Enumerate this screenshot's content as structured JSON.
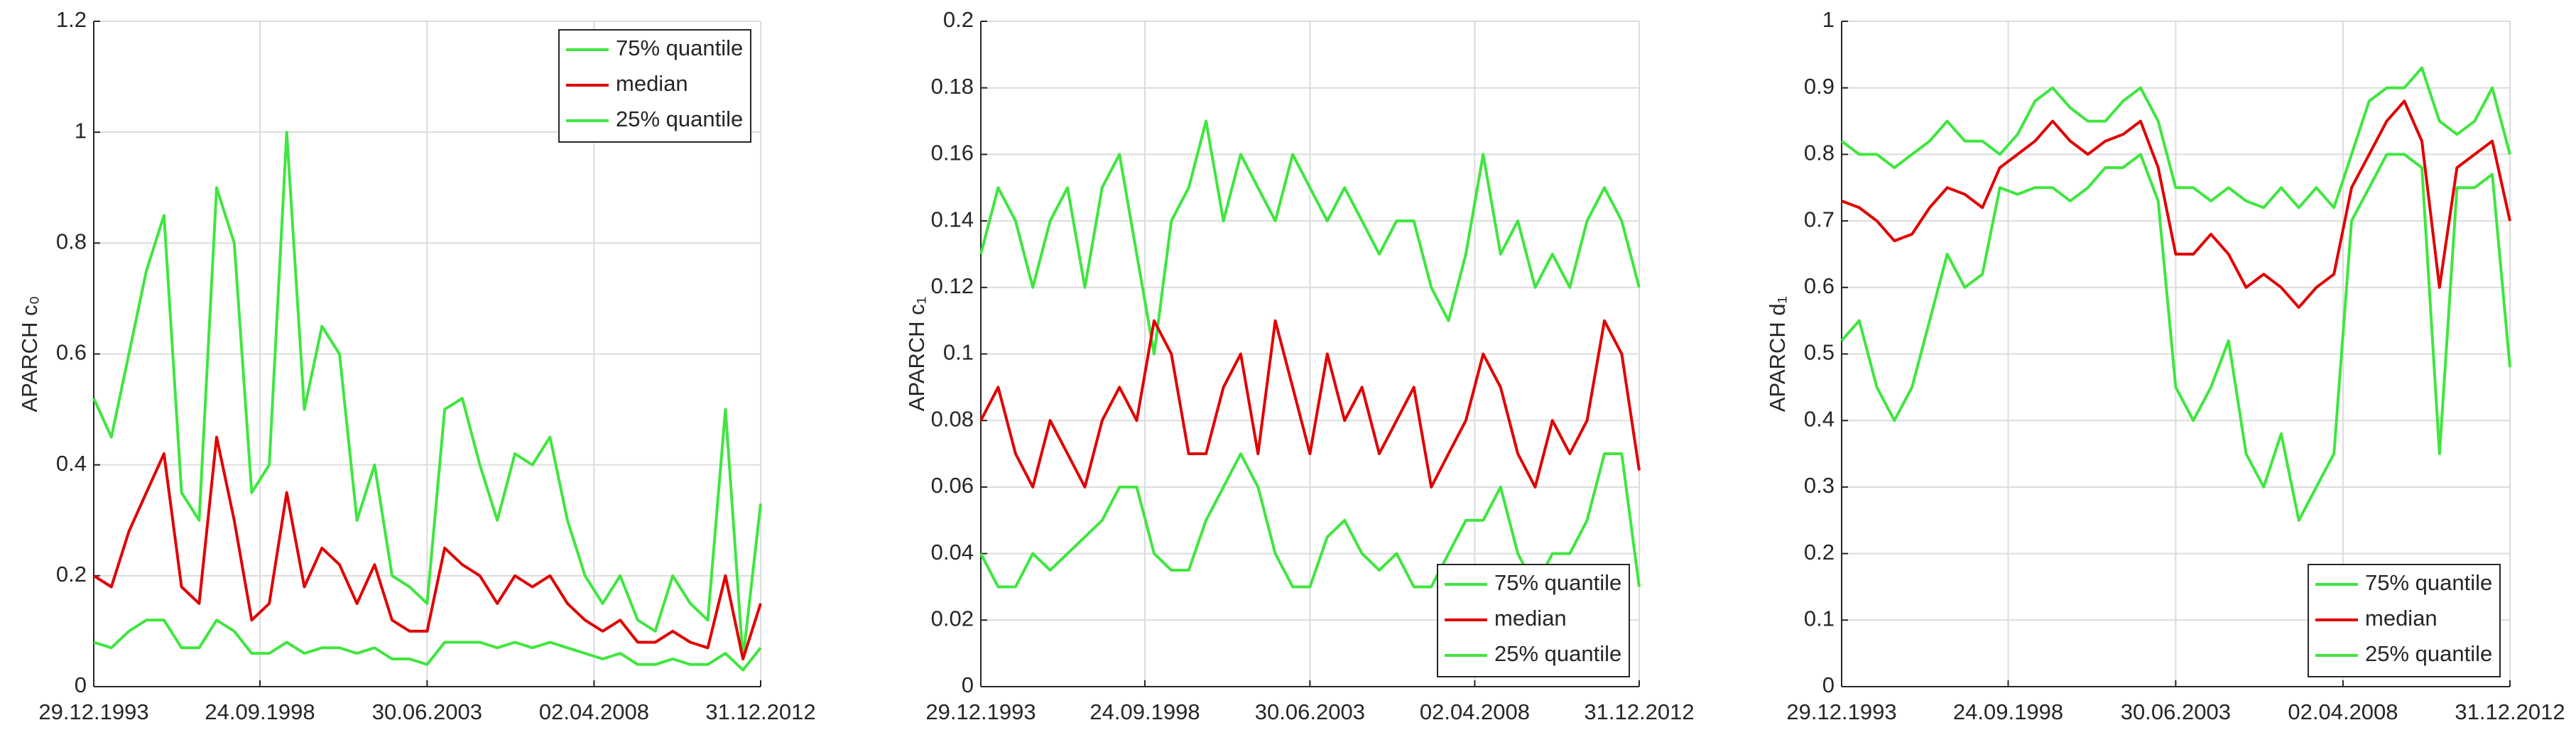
{
  "chart_data": [
    {
      "type": "line",
      "ylabel": "APARCH c₀",
      "x": [
        "29.12.1993",
        "30.06.1994",
        "30.12.1994",
        "30.06.1995",
        "30.12.1995",
        "30.06.1996",
        "30.12.1996",
        "30.06.1997",
        "30.12.1997",
        "30.06.1998",
        "30.12.1998",
        "30.06.1999",
        "30.12.1999",
        "30.06.2000",
        "30.12.2000",
        "30.06.2001",
        "30.12.2001",
        "30.06.2002",
        "30.12.2002",
        "30.06.2003",
        "30.12.2003",
        "30.06.2004",
        "30.12.2004",
        "30.06.2005",
        "30.12.2005",
        "30.06.2006",
        "30.12.2006",
        "30.06.2007",
        "30.12.2007",
        "30.06.2008",
        "30.12.2008",
        "30.06.2009",
        "30.12.2009",
        "30.06.2010",
        "30.12.2010",
        "30.06.2011",
        "30.12.2011",
        "30.06.2012",
        "31.12.2012"
      ],
      "xlim": [
        "29.12.1993",
        "31.12.2012"
      ],
      "xticks": [
        "29.12.1993",
        "24.09.1998",
        "30.06.2003",
        "02.04.2008",
        "31.12.2012"
      ],
      "ylim": [
        0,
        1.2
      ],
      "yticks": [
        0,
        0.2,
        0.4,
        0.6,
        0.8,
        1,
        1.2
      ],
      "grid": true,
      "legend": "upper right",
      "series": [
        {
          "name": "75% quantile",
          "color": "#3fe63f",
          "values": [
            0.52,
            0.45,
            0.6,
            0.75,
            0.85,
            0.35,
            0.3,
            0.9,
            0.8,
            0.35,
            0.4,
            1.0,
            0.5,
            0.65,
            0.6,
            0.3,
            0.4,
            0.2,
            0.18,
            0.15,
            0.5,
            0.52,
            0.4,
            0.3,
            0.42,
            0.4,
            0.45,
            0.3,
            0.2,
            0.15,
            0.2,
            0.12,
            0.1,
            0.2,
            0.15,
            0.12,
            0.5,
            0.05,
            0.33
          ]
        },
        {
          "name": "median",
          "color": "#e00000",
          "values": [
            0.2,
            0.18,
            0.28,
            0.35,
            0.42,
            0.18,
            0.15,
            0.45,
            0.3,
            0.12,
            0.15,
            0.35,
            0.18,
            0.25,
            0.22,
            0.15,
            0.22,
            0.12,
            0.1,
            0.1,
            0.25,
            0.22,
            0.2,
            0.15,
            0.2,
            0.18,
            0.2,
            0.15,
            0.12,
            0.1,
            0.12,
            0.08,
            0.08,
            0.1,
            0.08,
            0.07,
            0.2,
            0.05,
            0.15
          ]
        },
        {
          "name": "25% quantile",
          "color": "#3fe63f",
          "values": [
            0.08,
            0.07,
            0.1,
            0.12,
            0.12,
            0.07,
            0.07,
            0.12,
            0.1,
            0.06,
            0.06,
            0.08,
            0.06,
            0.07,
            0.07,
            0.06,
            0.07,
            0.05,
            0.05,
            0.04,
            0.08,
            0.08,
            0.08,
            0.07,
            0.08,
            0.07,
            0.08,
            0.07,
            0.06,
            0.05,
            0.06,
            0.04,
            0.04,
            0.05,
            0.04,
            0.04,
            0.06,
            0.03,
            0.07
          ]
        }
      ]
    },
    {
      "type": "line",
      "ylabel": "APARCH c₁",
      "x": [
        "29.12.1993",
        "30.06.1994",
        "30.12.1994",
        "30.06.1995",
        "30.12.1995",
        "30.06.1996",
        "30.12.1996",
        "30.06.1997",
        "30.12.1997",
        "30.06.1998",
        "30.12.1998",
        "30.06.1999",
        "30.12.1999",
        "30.06.2000",
        "30.12.2000",
        "30.06.2001",
        "30.12.2001",
        "30.06.2002",
        "30.12.2002",
        "30.06.2003",
        "30.12.2003",
        "30.06.2004",
        "30.12.2004",
        "30.06.2005",
        "30.12.2005",
        "30.06.2006",
        "30.12.2006",
        "30.06.2007",
        "30.12.2007",
        "30.06.2008",
        "30.12.2008",
        "30.06.2009",
        "30.12.2009",
        "30.06.2010",
        "30.12.2010",
        "30.06.2011",
        "30.12.2011",
        "30.06.2012",
        "31.12.2012"
      ],
      "xlim": [
        "29.12.1993",
        "31.12.2012"
      ],
      "xticks": [
        "29.12.1993",
        "24.09.1998",
        "30.06.2003",
        "02.04.2008",
        "31.12.2012"
      ],
      "ylim": [
        0,
        0.2
      ],
      "yticks": [
        0,
        0.02,
        0.04,
        0.06,
        0.08,
        0.1,
        0.12,
        0.14,
        0.16,
        0.18,
        0.2
      ],
      "grid": true,
      "legend": "lower right",
      "series": [
        {
          "name": "75% quantile",
          "color": "#3fe63f",
          "values": [
            0.13,
            0.15,
            0.14,
            0.12,
            0.14,
            0.15,
            0.12,
            0.15,
            0.16,
            0.13,
            0.1,
            0.14,
            0.15,
            0.17,
            0.14,
            0.16,
            0.15,
            0.14,
            0.16,
            0.15,
            0.14,
            0.15,
            0.14,
            0.13,
            0.14,
            0.14,
            0.12,
            0.11,
            0.13,
            0.16,
            0.13,
            0.14,
            0.12,
            0.13,
            0.12,
            0.14,
            0.15,
            0.14,
            0.12
          ]
        },
        {
          "name": "median",
          "color": "#e00000",
          "values": [
            0.08,
            0.09,
            0.07,
            0.06,
            0.08,
            0.07,
            0.06,
            0.08,
            0.09,
            0.08,
            0.11,
            0.1,
            0.07,
            0.07,
            0.09,
            0.1,
            0.07,
            0.11,
            0.09,
            0.07,
            0.1,
            0.08,
            0.09,
            0.07,
            0.08,
            0.09,
            0.06,
            0.07,
            0.08,
            0.1,
            0.09,
            0.07,
            0.06,
            0.08,
            0.07,
            0.08,
            0.11,
            0.1,
            0.065
          ]
        },
        {
          "name": "25% quantile",
          "color": "#3fe63f",
          "values": [
            0.04,
            0.03,
            0.03,
            0.04,
            0.035,
            0.04,
            0.045,
            0.05,
            0.06,
            0.06,
            0.04,
            0.035,
            0.035,
            0.05,
            0.06,
            0.07,
            0.06,
            0.04,
            0.03,
            0.03,
            0.045,
            0.05,
            0.04,
            0.035,
            0.04,
            0.03,
            0.03,
            0.04,
            0.05,
            0.05,
            0.06,
            0.04,
            0.03,
            0.04,
            0.04,
            0.05,
            0.07,
            0.07,
            0.03
          ]
        }
      ]
    },
    {
      "type": "line",
      "ylabel": "APARCH d₁",
      "x": [
        "29.12.1993",
        "30.06.1994",
        "30.12.1994",
        "30.06.1995",
        "30.12.1995",
        "30.06.1996",
        "30.12.1996",
        "30.06.1997",
        "30.12.1997",
        "30.06.1998",
        "30.12.1998",
        "30.06.1999",
        "30.12.1999",
        "30.06.2000",
        "30.12.2000",
        "30.06.2001",
        "30.12.2001",
        "30.06.2002",
        "30.12.2002",
        "30.06.2003",
        "30.12.2003",
        "30.06.2004",
        "30.12.2004",
        "30.06.2005",
        "30.12.2005",
        "30.06.2006",
        "30.12.2006",
        "30.06.2007",
        "30.12.2007",
        "30.06.2008",
        "30.12.2008",
        "30.06.2009",
        "30.12.2009",
        "30.06.2010",
        "30.12.2010",
        "30.06.2011",
        "30.12.2011",
        "30.06.2012",
        "31.12.2012"
      ],
      "xlim": [
        "29.12.1993",
        "31.12.2012"
      ],
      "xticks": [
        "29.12.1993",
        "24.09.1998",
        "30.06.2003",
        "02.04.2008",
        "31.12.2012"
      ],
      "ylim": [
        0,
        1
      ],
      "yticks": [
        0,
        0.1,
        0.2,
        0.3,
        0.4,
        0.5,
        0.6,
        0.7,
        0.8,
        0.9,
        1
      ],
      "grid": true,
      "legend": "lower right",
      "series": [
        {
          "name": "75% quantile",
          "color": "#3fe63f",
          "values": [
            0.82,
            0.8,
            0.8,
            0.78,
            0.8,
            0.82,
            0.85,
            0.82,
            0.82,
            0.8,
            0.83,
            0.88,
            0.9,
            0.87,
            0.85,
            0.85,
            0.88,
            0.9,
            0.85,
            0.75,
            0.75,
            0.73,
            0.75,
            0.73,
            0.72,
            0.75,
            0.72,
            0.75,
            0.72,
            0.8,
            0.88,
            0.9,
            0.9,
            0.93,
            0.85,
            0.83,
            0.85,
            0.9,
            0.8
          ]
        },
        {
          "name": "median",
          "color": "#e00000",
          "values": [
            0.73,
            0.72,
            0.7,
            0.67,
            0.68,
            0.72,
            0.75,
            0.74,
            0.72,
            0.78,
            0.8,
            0.82,
            0.85,
            0.82,
            0.8,
            0.82,
            0.83,
            0.85,
            0.78,
            0.65,
            0.65,
            0.68,
            0.65,
            0.6,
            0.62,
            0.6,
            0.57,
            0.6,
            0.62,
            0.75,
            0.8,
            0.85,
            0.88,
            0.82,
            0.6,
            0.78,
            0.8,
            0.82,
            0.7
          ]
        },
        {
          "name": "25% quantile",
          "color": "#3fe63f",
          "values": [
            0.52,
            0.55,
            0.45,
            0.4,
            0.45,
            0.55,
            0.65,
            0.6,
            0.62,
            0.75,
            0.74,
            0.75,
            0.75,
            0.73,
            0.75,
            0.78,
            0.78,
            0.8,
            0.73,
            0.45,
            0.4,
            0.45,
            0.52,
            0.35,
            0.3,
            0.38,
            0.25,
            0.3,
            0.35,
            0.7,
            0.75,
            0.8,
            0.8,
            0.78,
            0.35,
            0.75,
            0.75,
            0.77,
            0.48
          ]
        }
      ]
    }
  ]
}
